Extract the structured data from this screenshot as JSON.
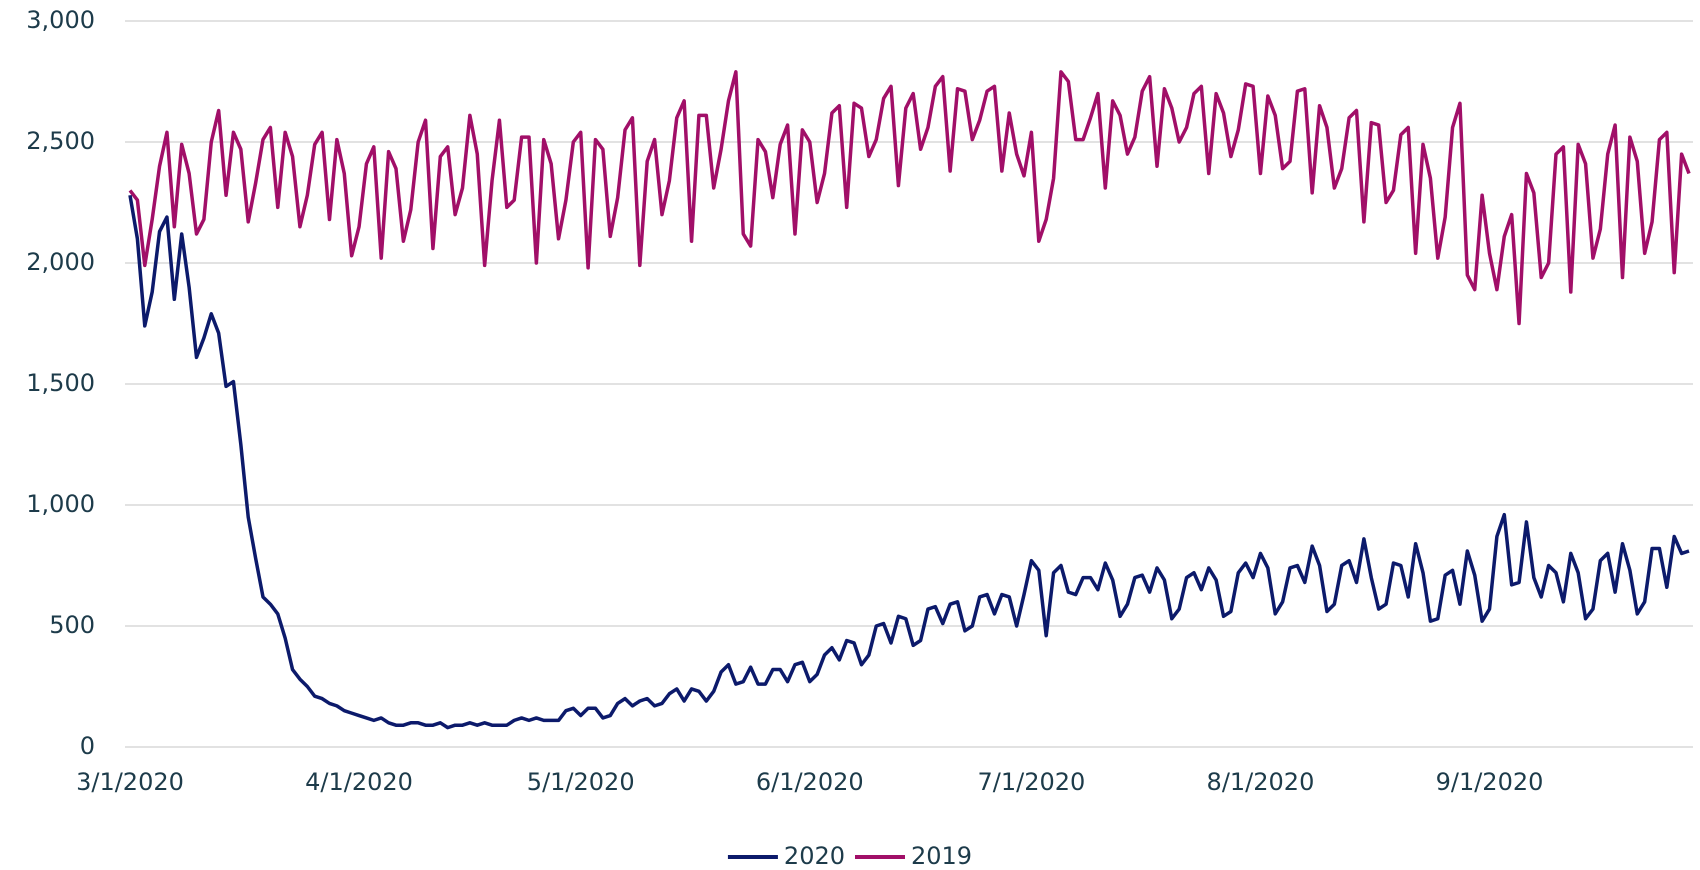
{
  "chart_data": {
    "type": "line",
    "categories": [
      "3/1/2020",
      null,
      null,
      null,
      null,
      null,
      null,
      null,
      null,
      null,
      null,
      null,
      null,
      null,
      null,
      null,
      null,
      null,
      null,
      null,
      null,
      null,
      null,
      null,
      null,
      null,
      null,
      null,
      null,
      null,
      null,
      "4/1/2020",
      null,
      null,
      null,
      null,
      null,
      null,
      null,
      null,
      null,
      null,
      null,
      null,
      null,
      null,
      null,
      null,
      null,
      null,
      null,
      null,
      null,
      null,
      null,
      null,
      null,
      null,
      null,
      null,
      null,
      "5/1/2020",
      null,
      null,
      null,
      null,
      null,
      null,
      null,
      null,
      null,
      null,
      null,
      null,
      null,
      null,
      null,
      null,
      null,
      null,
      null,
      null,
      null,
      null,
      null,
      null,
      null,
      null,
      null,
      null,
      null,
      null,
      "6/1/2020",
      null,
      null,
      null,
      null,
      null,
      null,
      null,
      null,
      null,
      null,
      null,
      null,
      null,
      null,
      null,
      null,
      null,
      null,
      null,
      null,
      null,
      null,
      null,
      null,
      null,
      null,
      null,
      null,
      null,
      "7/1/2020",
      null,
      null,
      null,
      null,
      null,
      null,
      null,
      null,
      null,
      null,
      null,
      null,
      null,
      null,
      null,
      null,
      null,
      null,
      null,
      null,
      null,
      null,
      null,
      null,
      null,
      null,
      null,
      null,
      null,
      null,
      "8/1/2020",
      null,
      null,
      null,
      null,
      null,
      null,
      null,
      null,
      null,
      null,
      null,
      null,
      null,
      null,
      null,
      null,
      null,
      null,
      null,
      null,
      null,
      null,
      null,
      null,
      null,
      null,
      null,
      null,
      null,
      null,
      "9/1/2020",
      null,
      null,
      null,
      null,
      null,
      null,
      null,
      null,
      null,
      null,
      null,
      null,
      null,
      null,
      null,
      null,
      null,
      null,
      null,
      null,
      null,
      null,
      null,
      null,
      null,
      null,
      null
    ],
    "series": [
      {
        "name": "2020",
        "color": "#0c1a6b",
        "values": [
          2280,
          2100,
          1740,
          1880,
          2130,
          2190,
          1850,
          2120,
          1900,
          1610,
          1690,
          1790,
          1710,
          1490,
          1510,
          1250,
          950,
          780,
          620,
          590,
          550,
          450,
          320,
          280,
          250,
          210,
          200,
          180,
          170,
          150,
          140,
          130,
          120,
          110,
          120,
          100,
          90,
          90,
          100,
          100,
          90,
          90,
          100,
          80,
          90,
          90,
          100,
          90,
          100,
          90,
          90,
          90,
          110,
          120,
          110,
          120,
          110,
          110,
          110,
          150,
          160,
          130,
          160,
          160,
          120,
          130,
          180,
          200,
          170,
          190,
          200,
          170,
          180,
          220,
          240,
          190,
          240,
          230,
          190,
          230,
          310,
          340,
          260,
          270,
          330,
          260,
          260,
          320,
          320,
          270,
          340,
          350,
          270,
          300,
          380,
          410,
          360,
          440,
          430,
          340,
          380,
          500,
          510,
          430,
          540,
          530,
          420,
          440,
          570,
          580,
          510,
          590,
          600,
          480,
          500,
          620,
          630,
          550,
          630,
          620,
          500,
          630,
          770,
          730,
          460,
          720,
          750,
          640,
          630,
          700,
          700,
          650,
          760,
          690,
          540,
          590,
          700,
          710,
          640,
          740,
          690,
          530,
          570,
          700,
          720,
          650,
          740,
          690,
          540,
          560,
          720,
          760,
          700,
          800,
          740,
          550,
          600,
          740,
          750,
          680,
          830,
          750,
          560,
          590,
          750,
          770,
          680,
          860,
          700,
          570,
          590,
          760,
          750,
          620,
          840,
          720,
          520,
          530,
          710,
          730,
          590,
          810,
          710,
          520,
          570,
          870,
          960,
          670,
          680,
          930,
          700,
          620,
          750,
          720,
          600,
          800,
          720,
          530,
          570,
          770,
          800,
          640,
          840,
          730,
          550,
          600,
          820,
          820,
          660,
          870,
          800,
          810
        ]
      },
      {
        "name": "2019",
        "color": "#a10f68",
        "values": [
          2300,
          2260,
          1990,
          2180,
          2400,
          2540,
          2150,
          2490,
          2370,
          2120,
          2180,
          2500,
          2630,
          2280,
          2540,
          2470,
          2170,
          2330,
          2510,
          2560,
          2230,
          2540,
          2440,
          2150,
          2280,
          2490,
          2540,
          2180,
          2510,
          2370,
          2030,
          2150,
          2410,
          2480,
          2020,
          2460,
          2390,
          2090,
          2220,
          2500,
          2590,
          2060,
          2440,
          2480,
          2200,
          2310,
          2610,
          2450,
          1990,
          2340,
          2590,
          2230,
          2260,
          2520,
          2520,
          2000,
          2510,
          2410,
          2100,
          2260,
          2500,
          2540,
          1980,
          2510,
          2470,
          2110,
          2270,
          2550,
          2600,
          1990,
          2420,
          2510,
          2200,
          2340,
          2600,
          2670,
          2090,
          2610,
          2610,
          2310,
          2470,
          2670,
          2790,
          2120,
          2070,
          2510,
          2460,
          2270,
          2490,
          2570,
          2120,
          2550,
          2500,
          2250,
          2370,
          2620,
          2650,
          2230,
          2660,
          2640,
          2440,
          2510,
          2680,
          2730,
          2320,
          2640,
          2700,
          2470,
          2560,
          2730,
          2770,
          2380,
          2720,
          2710,
          2510,
          2590,
          2710,
          2730,
          2380,
          2620,
          2450,
          2360,
          2540,
          2090,
          2180,
          2350,
          2790,
          2750,
          2510,
          2510,
          2600,
          2700,
          2310,
          2670,
          2610,
          2450,
          2520,
          2710,
          2770,
          2400,
          2720,
          2640,
          2500,
          2560,
          2700,
          2730,
          2370,
          2700,
          2620,
          2440,
          2550,
          2740,
          2730,
          2370,
          2690,
          2610,
          2390,
          2420,
          2710,
          2720,
          2290,
          2650,
          2560,
          2310,
          2390,
          2600,
          2630,
          2170,
          2580,
          2570,
          2250,
          2300,
          2530,
          2560,
          2040,
          2490,
          2350,
          2020,
          2190,
          2560,
          2660,
          1950,
          1890,
          2280,
          2040,
          1890,
          2110,
          2200,
          1750,
          2370,
          2290,
          1940,
          2000,
          2450,
          2480,
          1880,
          2490,
          2410,
          2020,
          2140,
          2450,
          2570,
          1940,
          2520,
          2420,
          2040,
          2170,
          2510,
          2540,
          1960,
          2450,
          2370
        ]
      }
    ],
    "ylim": [
      0,
      3000
    ],
    "yticks": [
      0,
      500,
      {
        "value": 1000,
        "label": "1,000"
      },
      {
        "value": 1500,
        "label": "1,500"
      },
      {
        "value": 2000,
        "label": "2,000"
      },
      {
        "value": 2500,
        "label": "2,500"
      },
      {
        "value": 3000,
        "label": "3,000"
      }
    ],
    "grid": true,
    "legend": "bottom"
  }
}
